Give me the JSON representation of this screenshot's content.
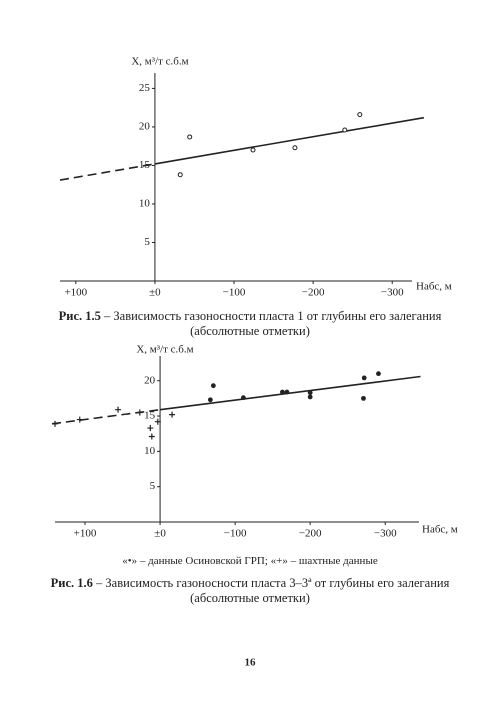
{
  "chart_data": [
    {
      "type": "scatter",
      "y_label": "X, м³/т с.б.м",
      "x_label": "Hабс, м",
      "xlim": [
        120,
        -325
      ],
      "ylim": [
        0,
        27
      ],
      "xticks": [
        {
          "value": 100,
          "label": "+100"
        },
        {
          "value": 0,
          "label": "±0"
        },
        {
          "value": -100,
          "label": "−100"
        },
        {
          "value": -200,
          "label": "−200"
        },
        {
          "value": -300,
          "label": "−300"
        }
      ],
      "yticks": [
        5,
        10,
        15,
        20,
        25
      ],
      "marker": "open-circle",
      "color": "#222222",
      "x": [
        -32,
        -44,
        -124,
        -177,
        -240,
        -259
      ],
      "values": [
        13.8,
        18.7,
        17.0,
        17.3,
        19.6,
        21.6
      ],
      "trend_line": {
        "x": [
          0,
          -340
        ],
        "values": [
          15.2,
          21.2
        ]
      },
      "trend_extrapolation": {
        "x": [
          120,
          0
        ],
        "values": [
          13.1,
          15.2
        ]
      }
    },
    {
      "type": "scatter",
      "y_label": "X, м³/т с.б.м",
      "x_label": "Hабс, м",
      "xlim": [
        140,
        -345
      ],
      "ylim": [
        0,
        23.5
      ],
      "xticks": [
        {
          "value": 100,
          "label": "+100"
        },
        {
          "value": 0,
          "label": "±0"
        },
        {
          "value": -100,
          "label": "−100"
        },
        {
          "value": -200,
          "label": "−200"
        },
        {
          "value": -300,
          "label": "−300"
        }
      ],
      "yticks": [
        5,
        10,
        15,
        20
      ],
      "color": "#222222",
      "series": [
        {
          "name": "данные Осиновской ГРП",
          "marker": "dot",
          "color": "#222222",
          "x": [
            -71,
            -67,
            -111,
            -163,
            -169,
            -200,
            -200,
            -272,
            -291,
            -271
          ],
          "values": [
            19.3,
            17.3,
            17.6,
            18.4,
            18.4,
            18.3,
            17.7,
            20.4,
            21.0,
            17.5
          ]
        },
        {
          "name": "шахтные данные",
          "marker": "plus",
          "color": "#222222",
          "x": [
            140,
            107,
            56,
            27,
            13,
            11,
            3,
            -16
          ],
          "values": [
            13.9,
            14.5,
            15.9,
            15.5,
            13.3,
            12.1,
            14.2,
            15.2
          ]
        }
      ],
      "legend_symbols": [
        "«•» –",
        "«+» –"
      ],
      "legend_separator": ";",
      "trend_line": {
        "x": [
          0,
          -347
        ],
        "values": [
          15.9,
          20.6
        ]
      },
      "trend_extrapolation": {
        "x": [
          144,
          0
        ],
        "values": [
          13.9,
          15.9
        ]
      }
    }
  ],
  "captions": [
    {
      "label": "Рис. 1.5",
      "text": "– Зависимость газоносности пласта 1 от глубины его залегания",
      "line2": "(абсолютные отметки)"
    },
    {
      "label": "Рис. 1.6",
      "text": "– Зависимость газоносности пласта 3–3ª от глубины его залегания",
      "line2": "(абсолютные отметки)"
    }
  ],
  "page_number": "16"
}
